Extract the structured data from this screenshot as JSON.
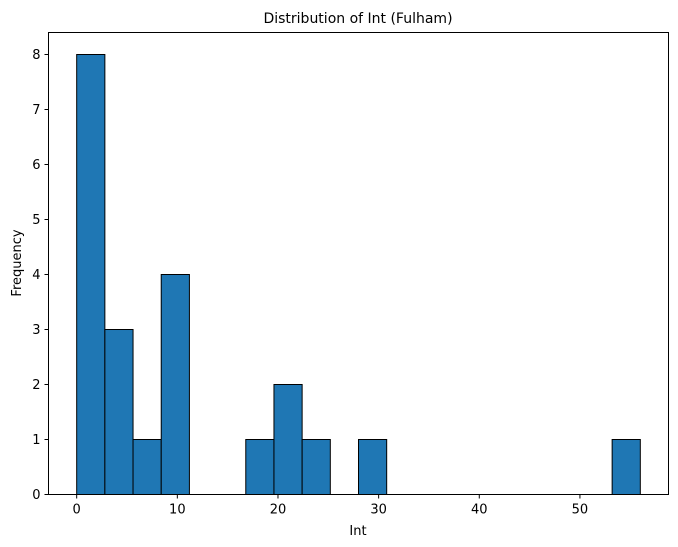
{
  "chart_data": {
    "type": "bar",
    "title": "Distribution of Int (Fulham)",
    "xlabel": "Int",
    "ylabel": "Frequency",
    "xlim": [
      -2.8,
      58.8
    ],
    "ylim": [
      0,
      8.4
    ],
    "x_ticks": [
      0,
      10,
      20,
      30,
      40,
      50
    ],
    "y_ticks": [
      0,
      1,
      2,
      3,
      4,
      5,
      6,
      7,
      8
    ],
    "bins": [
      {
        "x0": 0,
        "x1": 2.8,
        "count": 8
      },
      {
        "x0": 2.8,
        "x1": 5.6,
        "count": 3
      },
      {
        "x0": 5.6,
        "x1": 8.4,
        "count": 1
      },
      {
        "x0": 8.4,
        "x1": 11.2,
        "count": 4
      },
      {
        "x0": 11.2,
        "x1": 14.0,
        "count": 0
      },
      {
        "x0": 14.0,
        "x1": 16.8,
        "count": 0
      },
      {
        "x0": 16.8,
        "x1": 19.6,
        "count": 1
      },
      {
        "x0": 19.6,
        "x1": 22.4,
        "count": 2
      },
      {
        "x0": 22.4,
        "x1": 25.2,
        "count": 1
      },
      {
        "x0": 25.2,
        "x1": 28.0,
        "count": 0
      },
      {
        "x0": 28.0,
        "x1": 30.8,
        "count": 1
      },
      {
        "x0": 30.8,
        "x1": 33.6,
        "count": 0
      },
      {
        "x0": 33.6,
        "x1": 36.4,
        "count": 0
      },
      {
        "x0": 36.4,
        "x1": 39.2,
        "count": 0
      },
      {
        "x0": 39.2,
        "x1": 42.0,
        "count": 0
      },
      {
        "x0": 42.0,
        "x1": 44.8,
        "count": 0
      },
      {
        "x0": 44.8,
        "x1": 47.6,
        "count": 0
      },
      {
        "x0": 47.6,
        "x1": 50.4,
        "count": 0
      },
      {
        "x0": 50.4,
        "x1": 53.2,
        "count": 0
      },
      {
        "x0": 53.2,
        "x1": 56.0,
        "count": 1
      }
    ],
    "bar_color": "#1f77b4",
    "edge_color": "#000000",
    "grid": false,
    "legend": "none"
  }
}
